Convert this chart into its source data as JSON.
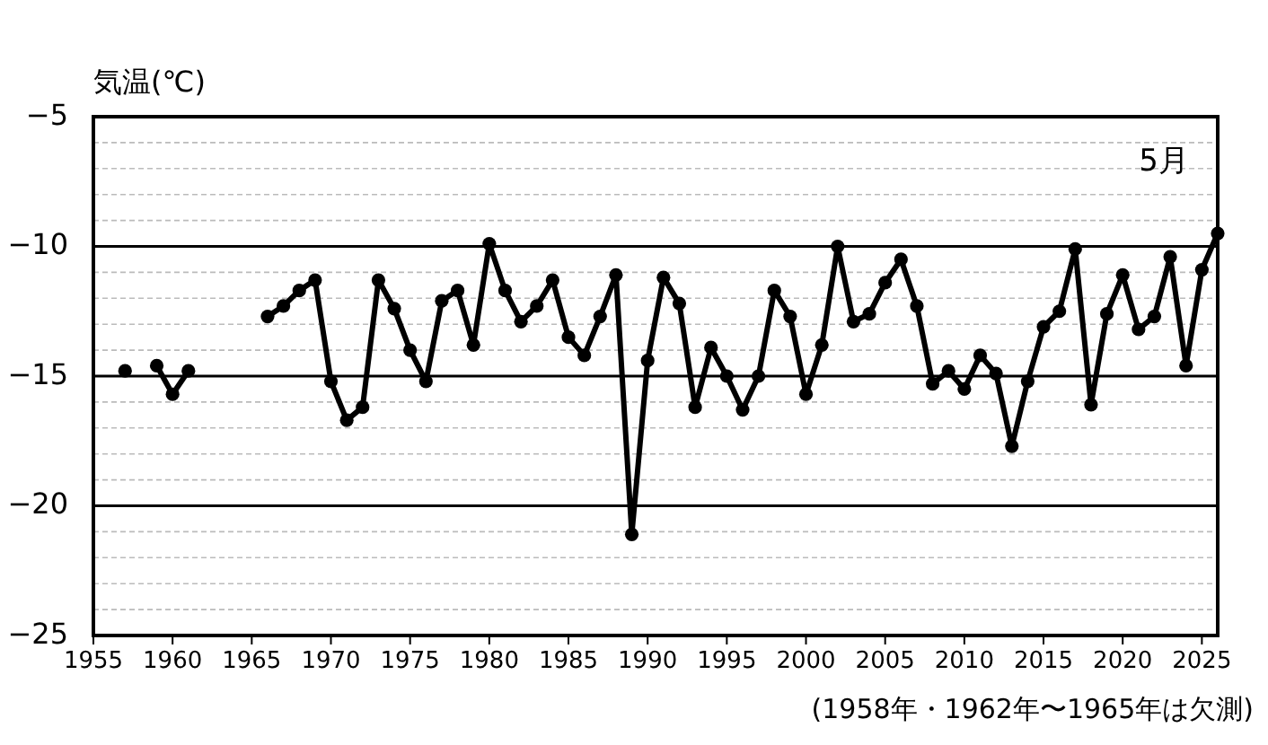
{
  "chart_data": {
    "type": "line",
    "title": "5月",
    "ylabel": "気温(℃)",
    "annotations": [
      "(1958年・1962年〜1965年は欠測)"
    ],
    "x": [
      1957,
      1958,
      1959,
      1960,
      1961,
      1962,
      1963,
      1964,
      1965,
      1966,
      1967,
      1968,
      1969,
      1970,
      1971,
      1972,
      1973,
      1974,
      1975,
      1976,
      1977,
      1978,
      1979,
      1980,
      1981,
      1982,
      1983,
      1984,
      1985,
      1986,
      1987,
      1988,
      1989,
      1990,
      1991,
      1992,
      1993,
      1994,
      1995,
      1996,
      1997,
      1998,
      1999,
      2000,
      2001,
      2002,
      2003,
      2004,
      2005,
      2006,
      2007,
      2008,
      2009,
      2010,
      2011,
      2012,
      2013,
      2014,
      2015,
      2016,
      2017,
      2018,
      2019,
      2020,
      2021,
      2022,
      2023,
      2024,
      2025,
      2026
    ],
    "series": [
      {
        "color": "#000000",
        "values": [
          -14.8,
          null,
          -14.6,
          -15.7,
          -14.8,
          null,
          null,
          null,
          null,
          -12.7,
          -12.3,
          -11.7,
          -11.3,
          -15.2,
          -16.7,
          -16.2,
          -11.3,
          -12.4,
          -14.0,
          -15.2,
          -12.1,
          -11.7,
          -13.8,
          -9.9,
          -11.7,
          -12.9,
          -12.3,
          -11.3,
          -13.5,
          -14.2,
          -12.7,
          -11.1,
          -21.1,
          -14.4,
          -11.2,
          -12.2,
          -16.2,
          -13.9,
          -15.0,
          -16.3,
          -15.0,
          -11.7,
          -12.7,
          -15.7,
          -13.8,
          -10.0,
          -12.9,
          -12.6,
          -11.4,
          -10.5,
          -12.3,
          -15.3,
          -14.8,
          -15.5,
          -14.2,
          -14.9,
          -17.7,
          -15.2,
          -13.1,
          -12.5,
          -10.1,
          -16.1,
          -12.6,
          -11.1,
          -13.2,
          -12.7,
          -10.4,
          -14.6,
          -10.9,
          -9.5
        ]
      }
    ],
    "xlim": [
      1955,
      2026
    ],
    "xticks": [
      1955,
      1960,
      1965,
      1970,
      1975,
      1980,
      1985,
      1990,
      1995,
      2000,
      2005,
      2010,
      2015,
      2020,
      2025
    ],
    "ylim": [
      -25,
      -5
    ],
    "yticks": [
      -25,
      {
        "value": -24,
        "label": null
      },
      {
        "value": -23,
        "label": null
      },
      {
        "value": -22,
        "label": null
      },
      {
        "value": -21,
        "label": null
      },
      -20,
      {
        "value": -19,
        "label": null
      },
      {
        "value": -18,
        "label": null
      },
      {
        "value": -17,
        "label": null
      },
      {
        "value": -16,
        "label": null
      },
      -15,
      {
        "value": -14,
        "label": null
      },
      {
        "value": -13,
        "label": null
      },
      {
        "value": -12,
        "label": null
      },
      {
        "value": -11,
        "label": null
      },
      -10,
      {
        "value": -9,
        "label": null
      },
      {
        "value": -8,
        "label": null
      },
      {
        "value": -7,
        "label": null
      },
      {
        "value": -6,
        "label": null
      },
      -5
    ],
    "grid": "y",
    "marker": "circle",
    "line_style": "solid"
  }
}
